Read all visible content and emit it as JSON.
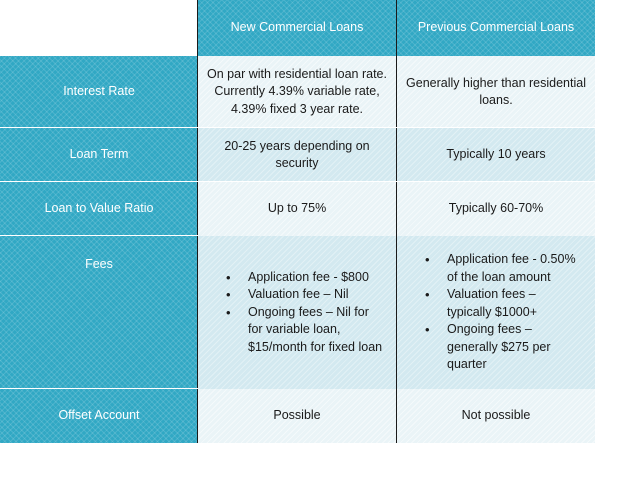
{
  "table": {
    "columns": [
      "New Commercial Loans",
      "Previous Commercial Loans"
    ],
    "rows": [
      {
        "label": "Interest Rate",
        "new": "On par with residential loan rate. Currently 4.39% variable rate, 4.39% fixed 3 year rate.",
        "previous": "Generally higher than residential loans."
      },
      {
        "label": "Loan Term",
        "new": "20-25 years depending on security",
        "previous": "Typically 10 years"
      },
      {
        "label": "Loan to Value Ratio",
        "new": "Up to 75%",
        "previous": "Typically 60-70%"
      },
      {
        "label": "Fees",
        "new_items": [
          "Application fee - $800",
          "Valuation fee – Nil",
          "Ongoing fees – Nil for for variable loan, $15/month for fixed loan"
        ],
        "previous_items": [
          "Application fee - 0.50% of the loan amount",
          "Valuation fees – typically $1000+",
          "Ongoing fees – generally $275 per quarter"
        ]
      },
      {
        "label": "Offset Account",
        "new": "Possible",
        "previous": "Not possible"
      }
    ]
  }
}
